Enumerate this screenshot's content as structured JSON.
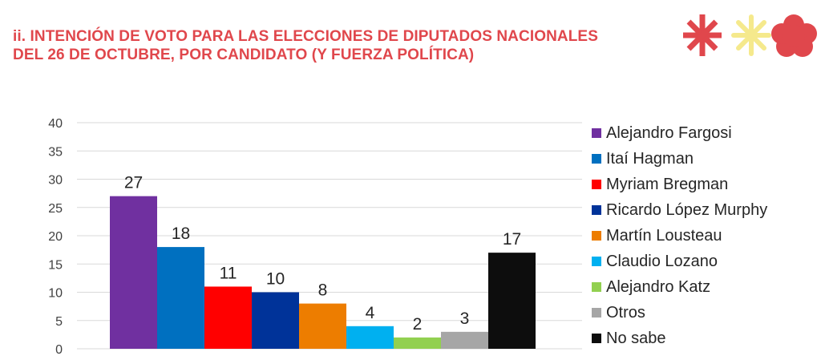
{
  "title": {
    "line1": "ii. INTENCIÓN DE VOTO PARA LAS ELECCIONES DE DIPUTADOS NACIONALES",
    "line2": "DEL 26 DE OCTUBRE, POR CANDIDATO (Y FUERZA POLÍTICA)"
  },
  "colors": {
    "title": "#e0474c",
    "logo_red": "#e0474c",
    "logo_yellow": "#f5e98c",
    "gridline": "#d9d9d9"
  },
  "chart_data": {
    "type": "bar",
    "title": "ii. INTENCIÓN DE VOTO PARA LAS ELECCIONES DE DIPUTADOS NACIONALES DEL 26 DE OCTUBRE, POR CANDIDATO (Y FUERZA POLÍTICA)",
    "xlabel": "",
    "ylabel": "",
    "ylim": [
      0,
      40
    ],
    "yticks": [
      "0",
      "5",
      "10",
      "15",
      "20",
      "25",
      "30",
      "35",
      "40"
    ],
    "grid": true,
    "legend_position": "right",
    "categories": [
      "Alejandro Fargosi",
      "Itaí Hagman",
      "Myriam Bregman",
      "Ricardo López Murphy",
      "Martín Lousteau",
      "Claudio Lozano",
      "Alejandro Katz",
      "Otros",
      "No sabe"
    ],
    "values": [
      27,
      18,
      11,
      10,
      8,
      4,
      2,
      3,
      17
    ],
    "value_labels": [
      "27",
      "18",
      "11",
      "10",
      "8",
      "4",
      "2",
      "3",
      "17"
    ],
    "series_colors": [
      "#7030a0",
      "#0070c0",
      "#ff0000",
      "#003399",
      "#ed7d00",
      "#00b0f0",
      "#92d050",
      "#a6a6a6",
      "#0d0d0d"
    ]
  }
}
